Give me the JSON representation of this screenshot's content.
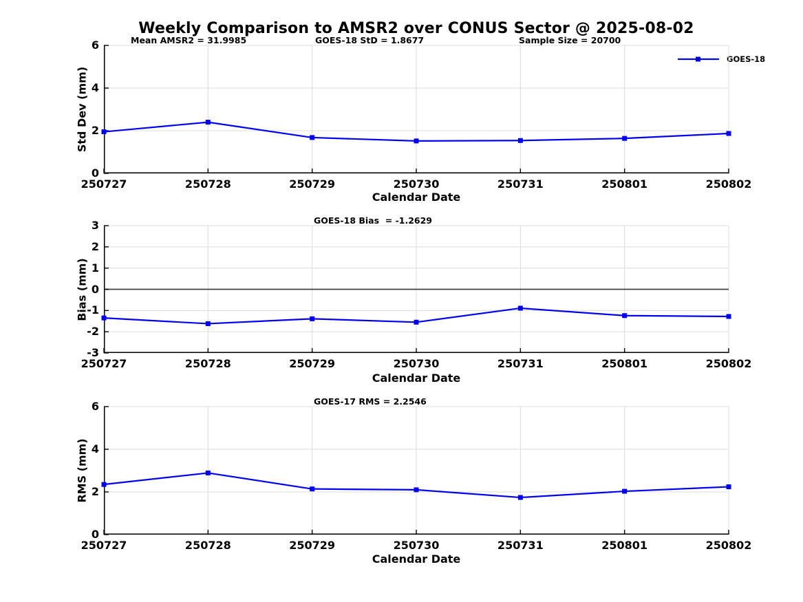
{
  "title": "Weekly Comparison to AMSR2 over CONUS Sector @ 2025-08-02",
  "colors": {
    "series_blue": "#0000EE",
    "grid": "#DCDCDC",
    "zero_line": "#404040",
    "axis": "#000000",
    "text": "#000000"
  },
  "chart_data": [
    {
      "id": "std-dev",
      "type": "line",
      "categories": [
        "250727",
        "250728",
        "250729",
        "250730",
        "250731",
        "250801",
        "250802"
      ],
      "series": [
        {
          "name": "GOES-18",
          "values": [
            1.95,
            2.4,
            1.68,
            1.52,
            1.54,
            1.64,
            1.87
          ]
        }
      ],
      "annotations": [
        {
          "text": "Mean AMSR2 = 31.9985"
        },
        {
          "text": "GOES-18 StD = 1.8677"
        },
        {
          "text": "Sample Size = 20700"
        }
      ],
      "legend": {
        "label": "GOES-18",
        "position": "top-right-inside"
      },
      "xlabel": "Calendar Date",
      "ylabel": "Std Dev (mm)",
      "ylim": [
        0,
        6
      ],
      "yticks": [
        0,
        2,
        4,
        6
      ],
      "grid": true,
      "zero_line": false,
      "marker": "square"
    },
    {
      "id": "bias",
      "type": "line",
      "categories": [
        "250727",
        "250728",
        "250729",
        "250730",
        "250731",
        "250801",
        "250802"
      ],
      "series": [
        {
          "name": "GOES-18",
          "values": [
            -1.35,
            -1.62,
            -1.39,
            -1.55,
            -0.89,
            -1.24,
            -1.28
          ]
        }
      ],
      "annotations": [
        {
          "text": "GOES-18 Bias  = -1.2629"
        }
      ],
      "xlabel": "Calendar Date",
      "ylabel": "Bias (mm)",
      "ylim": [
        -3,
        3
      ],
      "yticks": [
        -3,
        -2,
        -1,
        0,
        1,
        2,
        3
      ],
      "grid": true,
      "zero_line": true,
      "marker": "square"
    },
    {
      "id": "rms",
      "type": "line",
      "categories": [
        "250727",
        "250728",
        "250729",
        "250730",
        "250731",
        "250801",
        "250802"
      ],
      "series": [
        {
          "name": "GOES-17",
          "values": [
            2.35,
            2.89,
            2.14,
            2.1,
            1.74,
            2.03,
            2.24
          ]
        }
      ],
      "annotations": [
        {
          "text": "GOES-17 RMS = 2.2546"
        }
      ],
      "xlabel": "Calendar Date",
      "ylabel": "RMS (mm)",
      "ylim": [
        0,
        6
      ],
      "yticks": [
        0,
        2,
        4,
        6
      ],
      "grid": true,
      "zero_line": false,
      "marker": "square"
    }
  ]
}
